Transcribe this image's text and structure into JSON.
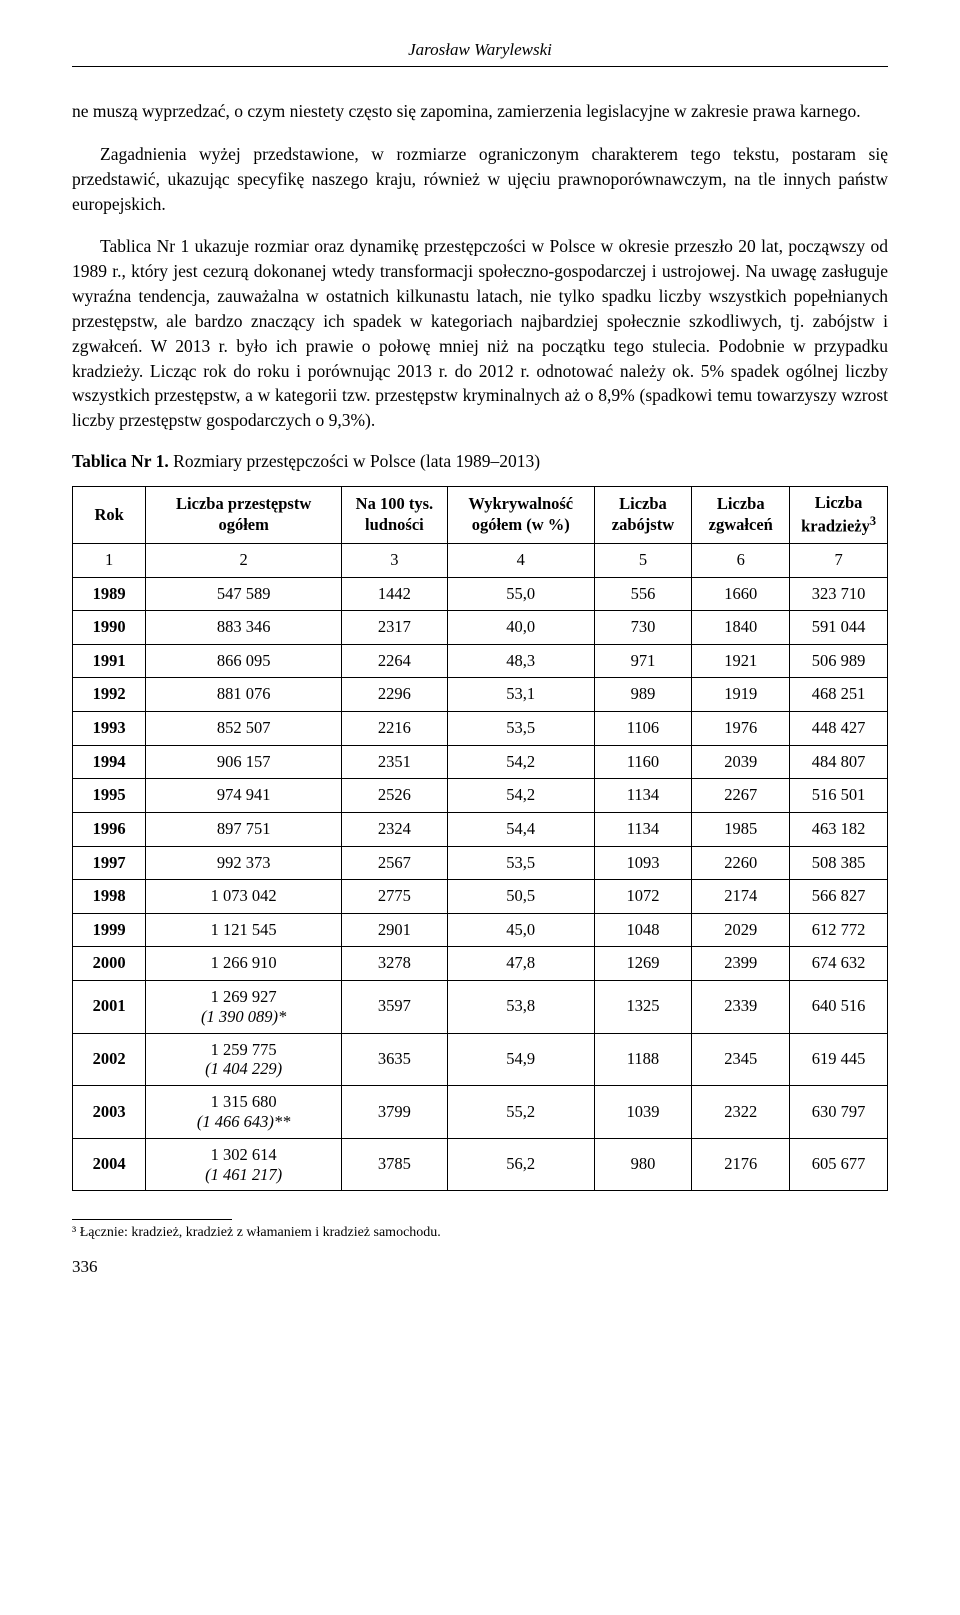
{
  "runningHead": "Jarosław Warylewski",
  "para1": "ne muszą wyprzedzać, o czym niestety często się zapomina, zamierzenia legislacyjne w zakresie prawa karnego.",
  "para2": "Zagadnienia wyżej przedstawione, w rozmiarze ograniczonym charakterem tego tekstu, postaram się przedstawić, ukazując specyfikę naszego kraju, również w ujęciu prawnoporównawczym, na tle innych państw europejskich.",
  "para3": "Tablica Nr 1 ukazuje rozmiar oraz dynamikę przestępczości w Polsce w okresie przeszło 20 lat, począwszy od 1989 r., który jest cezurą dokonanej wtedy transformacji społeczno-gospodarczej i ustrojowej. Na uwagę zasługuje wyraźna tendencja, zauważalna w ostatnich kilkunastu latach, nie tylko spadku liczby wszystkich popełnianych przestępstw, ale bardzo znaczący ich spadek w kategoriach najbardziej społecznie szkodliwych, tj. zabójstw i zgwałceń. W 2013 r. było ich prawie o połowę mniej niż na początku tego stulecia. Podobnie w przypadku kradzieży. Licząc rok do roku i porównując 2013 r. do 2012 r. odnotować należy ok. 5% spadek ogólnej liczby wszystkich przestępstw, a w kategorii tzw. przestępstw kryminalnych aż o 8,9% (spadkowi temu towarzyszy wzrost liczby przestępstw gospodarczych o 9,3%).",
  "tableTitleBold": "Tablica Nr 1.",
  "tableTitleRest": " Rozmiary przestępczości w Polsce (lata 1989–2013)",
  "table": {
    "headers": [
      "Rok",
      "Liczba przestępstw ogółem",
      "Na 100 tys. ludności",
      "Wykrywalność ogółem (w %)",
      "Liczba zabójstw",
      "Liczba zgwałceń",
      "Liczba kradzieży³"
    ],
    "colNums": [
      "1",
      "2",
      "3",
      "4",
      "5",
      "6",
      "7"
    ],
    "rows": [
      {
        "c": [
          "1989",
          "547 589",
          "1442",
          "55,0",
          "556",
          "1660",
          "323 710"
        ]
      },
      {
        "c": [
          "1990",
          "883 346",
          "2317",
          "40,0",
          "730",
          "1840",
          "591 044"
        ]
      },
      {
        "c": [
          "1991",
          "866 095",
          "2264",
          "48,3",
          "971",
          "1921",
          "506 989"
        ]
      },
      {
        "c": [
          "1992",
          "881 076",
          "2296",
          "53,1",
          "989",
          "1919",
          "468 251"
        ]
      },
      {
        "c": [
          "1993",
          "852 507",
          "2216",
          "53,5",
          "1106",
          "1976",
          "448 427"
        ]
      },
      {
        "c": [
          "1994",
          "906 157",
          "2351",
          "54,2",
          "1160",
          "2039",
          "484 807"
        ]
      },
      {
        "c": [
          "1995",
          "974 941",
          "2526",
          "54,2",
          "1134",
          "2267",
          "516 501"
        ]
      },
      {
        "c": [
          "1996",
          "897 751",
          "2324",
          "54,4",
          "1134",
          "1985",
          "463 182"
        ]
      },
      {
        "c": [
          "1997",
          "992 373",
          "2567",
          "53,5",
          "1093",
          "2260",
          "508 385"
        ]
      },
      {
        "c": [
          "1998",
          "1 073 042",
          "2775",
          "50,5",
          "1072",
          "2174",
          "566 827"
        ]
      },
      {
        "c": [
          "1999",
          "1 121 545",
          "2901",
          "45,0",
          "1048",
          "2029",
          "612 772"
        ]
      },
      {
        "c": [
          "2000",
          "1 266 910",
          "3278",
          "47,8",
          "1269",
          "2399",
          "674 632"
        ]
      },
      {
        "c": [
          "2001",
          "",
          "3597",
          "53,8",
          "1325",
          "2339",
          "640 516"
        ],
        "stack": {
          "idx": 1,
          "main": "1 269 927",
          "sub": "(1 390 089)*"
        }
      },
      {
        "c": [
          "2002",
          "",
          "3635",
          "54,9",
          "1188",
          "2345",
          "619 445"
        ],
        "stack": {
          "idx": 1,
          "main": "1 259 775",
          "sub": "(1 404 229)"
        }
      },
      {
        "c": [
          "2003",
          "",
          "3799",
          "55,2",
          "1039",
          "2322",
          "630 797"
        ],
        "stack": {
          "idx": 1,
          "main": "1 315 680",
          "sub": "(1 466 643)**"
        }
      },
      {
        "c": [
          "2004",
          "",
          "3785",
          "56,2",
          "980",
          "2176",
          "605 677"
        ],
        "stack": {
          "idx": 1,
          "main": "1 302 614",
          "sub": "(1 461 217)"
        }
      }
    ],
    "colWidths": [
      "9%",
      "24%",
      "13%",
      "18%",
      "12%",
      "12%",
      "12%"
    ]
  },
  "footnote": "³ Łącznie: kradzież, kradzież z włamaniem i kradzież samochodu.",
  "pageNumber": "336",
  "style": {
    "bodyFontSize": 17.5,
    "tableFontSize": 16.5,
    "textColor": "#000000",
    "background": "#ffffff",
    "tableBorderColor": "#000000"
  }
}
